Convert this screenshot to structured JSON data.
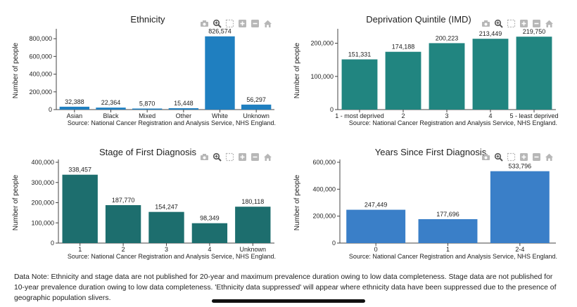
{
  "chart_data": [
    {
      "type": "bar",
      "title": "Ethnicity",
      "ylabel": "Number of people",
      "xlabel": "",
      "categories": [
        "Asian",
        "Black",
        "Mixed",
        "Other",
        "White",
        "Unknown"
      ],
      "values": [
        32388,
        22364,
        5870,
        15448,
        826574,
        56297
      ],
      "value_labels": [
        "32,388",
        "22,364",
        "5,870",
        "15,448",
        "826,574",
        "56,297"
      ],
      "ylim": [
        0,
        880000
      ],
      "yticks": [
        0,
        200000,
        400000,
        600000,
        800000
      ],
      "ytick_labels": [
        "0",
        "200,000",
        "400,000",
        "600,000",
        "800,000"
      ],
      "color": "#1f7fc0",
      "source": "Source: National Cancer Registration and Analysis Service, NHS England."
    },
    {
      "type": "bar",
      "title": "Deprivation Quintile (IMD)",
      "ylabel": "Number of people",
      "xlabel": "",
      "categories": [
        "1 - most deprived",
        "2",
        "3",
        "4",
        "5 - least deprived"
      ],
      "values": [
        151331,
        174188,
        200223,
        213449,
        219750
      ],
      "value_labels": [
        "151,331",
        "174,188",
        "200,223",
        "213,449",
        "219,750"
      ],
      "ylim": [
        0,
        235000
      ],
      "yticks": [
        0,
        100000,
        200000
      ],
      "ytick_labels": [
        "0",
        "100,000",
        "200,000"
      ],
      "color": "#218580",
      "source": "Source: National Cancer Registration and Analysis Service, NHS England."
    },
    {
      "type": "bar",
      "title": "Stage of First Diagnosis",
      "ylabel": "Number of people",
      "xlabel": "",
      "categories": [
        "1",
        "2",
        "3",
        "4",
        "Unknown"
      ],
      "values": [
        338457,
        187770,
        154247,
        98349,
        180118
      ],
      "value_labels": [
        "338,457",
        "187,770",
        "154,247",
        "98,349",
        "180,118"
      ],
      "ylim": [
        0,
        400000
      ],
      "yticks": [
        0,
        100000,
        200000,
        300000,
        400000
      ],
      "ytick_labels": [
        "0",
        "100,000",
        "200,000",
        "300,000",
        "400,000"
      ],
      "color": "#1d6e6e",
      "source": "Source: National Cancer Registration and Analysis Service, NHS England."
    },
    {
      "type": "bar",
      "title": "Years Since First Diagnosis",
      "ylabel": "Number of people",
      "xlabel": "",
      "categories": [
        "0",
        "1",
        "2-4"
      ],
      "values": [
        247449,
        177696,
        533796
      ],
      "value_labels": [
        "247,449",
        "177,696",
        "533,796"
      ],
      "ylim": [
        0,
        600000
      ],
      "yticks": [
        0,
        200000,
        400000,
        600000
      ],
      "ytick_labels": [
        "0",
        "200,000",
        "400,000",
        "600,000"
      ],
      "color": "#3a7fc8",
      "source": "Source: National Cancer Registration and Analysis Service, NHS England."
    }
  ],
  "modebar": {
    "icons": [
      "camera-icon",
      "zoom-icon",
      "select-box-icon",
      "zoom-in-icon",
      "zoom-out-icon",
      "home-icon"
    ],
    "color": "#b7b7b7"
  },
  "note": "Data Note: Ethnicity and stage data are not published for 20-year and maximum prevalence duration owing to low data completeness. Stage data are not published for 10-year prevalence duration owing to low data completeness. 'Ethnicity data suppressed' will appear where ethnicity data have been suppressed due to the presence of geographic population slivers."
}
